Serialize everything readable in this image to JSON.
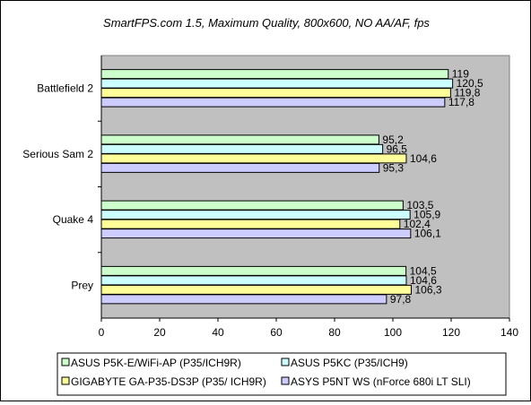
{
  "chart_data": {
    "type": "bar",
    "orientation": "horizontal",
    "title": "SmartFPS.com 1.5, Maximum Quality, 800x600, NO AA/AF, fps",
    "categories": [
      "Battlefield 2",
      "Serious Sam 2",
      "Quake 4",
      "Prey"
    ],
    "series": [
      {
        "name": "ASUS P5K-E/WiFi-AP (P35/ICH9R)",
        "color": "#ccffcc",
        "values": [
          119,
          95.2,
          103.5,
          104.5
        ],
        "labels": [
          "119",
          "95,2",
          "103,5",
          "104,5"
        ]
      },
      {
        "name": "ASUS P5KC (P35/ICH9)",
        "color": "#ccffff",
        "values": [
          120.5,
          96.5,
          105.9,
          104.6
        ],
        "labels": [
          "120,5",
          "96,5",
          "105,9",
          "104,6"
        ]
      },
      {
        "name": "GIGABYTE GA-P35-DS3P (P35/ ICH9R)",
        "color": "#ffff99",
        "values": [
          119.8,
          104.6,
          102.4,
          106.3
        ],
        "labels": [
          "119,8",
          "104,6",
          "102,4",
          "106,3"
        ]
      },
      {
        "name": "ASYS P5NT WS (nForce 680i LT SLI)",
        "color": "#ccccff",
        "values": [
          117.8,
          95.3,
          106.1,
          97.8
        ],
        "labels": [
          "117,8",
          "95,3",
          "106,1",
          "97,8"
        ]
      }
    ],
    "xlim": [
      0,
      140
    ],
    "xticks": [
      "0",
      "20",
      "40",
      "60",
      "80",
      "100",
      "120",
      "140"
    ],
    "plot_background": "#c0c0c0",
    "grid": false,
    "legend_position": "bottom"
  }
}
